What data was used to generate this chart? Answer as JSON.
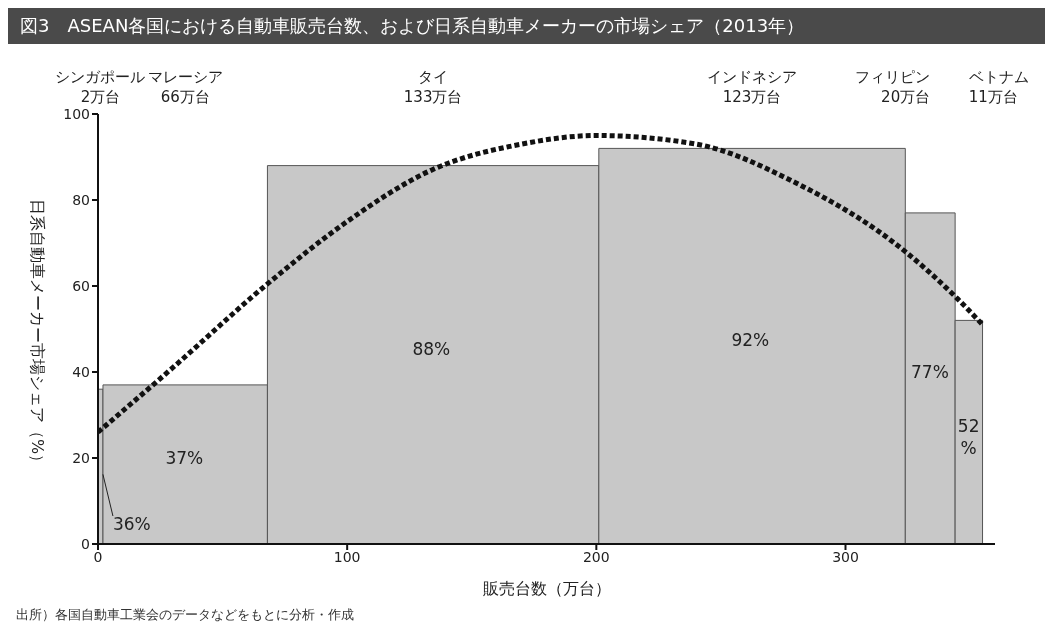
{
  "chart_data": {
    "type": "histogram",
    "title": "図3　ASEAN各国における自動車販売台数、および日系自動車メーカーの市場シェア（2013年）",
    "xlabel": "販売台数（万台）",
    "ylabel": "日系自動車メーカー市場シェア（%）",
    "bins": [
      0,
      2,
      68,
      201,
      324,
      344,
      355
    ],
    "values": [
      36,
      37,
      88,
      92,
      77,
      52
    ],
    "value_labels": [
      "36%",
      "37%",
      "88%",
      "92%",
      "77%",
      "52%"
    ],
    "color": "#c8c8c8",
    "series": [
      {
        "type": "line",
        "color": "#111111",
        "line_style": "dashed",
        "marker": "none",
        "x": [
          0,
          30,
          67,
          100,
          134,
          170,
          200,
          240,
          280,
          324,
          345,
          355
        ],
        "values": [
          26,
          41,
          60,
          75,
          87,
          93,
          95,
          93,
          84,
          68,
          57,
          51
        ]
      }
    ],
    "xlim": [
      0,
      360
    ],
    "xticks": [
      0,
      100,
      200,
      300
    ],
    "ylim": [
      0,
      100
    ],
    "yticks": [
      0,
      20,
      40,
      60,
      80,
      100
    ],
    "annotations": [
      "シンガポール\n2万台",
      "マレーシア\n66万台",
      "タイ\n133万台",
      "インドネシア\n123万台",
      "フィリピン\n20万台",
      "ベトナム\n11万台",
      "出所）各国自動車工業会のデータなどをもとに分析・作成"
    ]
  }
}
